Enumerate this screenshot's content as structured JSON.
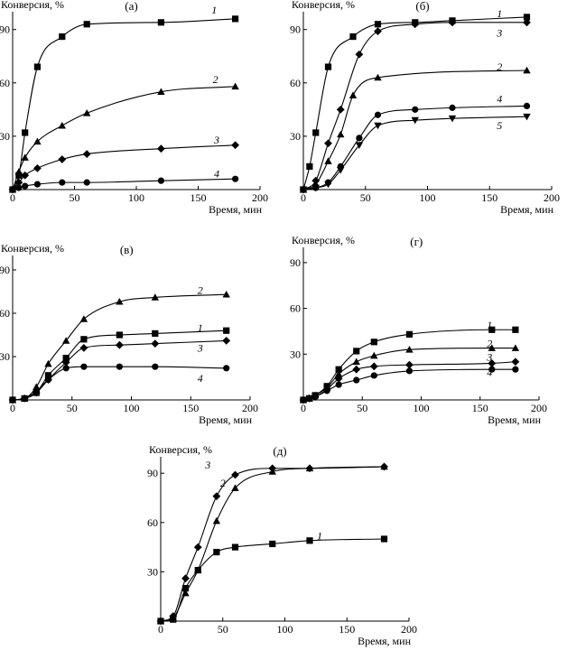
{
  "chart_data": [
    {
      "type": "line",
      "panel_label": "(а)",
      "ylabel": "Конверсия, %",
      "xlabel": "Время, мин",
      "xlim": [
        0,
        200
      ],
      "ylim": [
        0,
        100
      ],
      "xticks": [
        0,
        50,
        100,
        150,
        200
      ],
      "yticks": [
        30,
        60,
        90
      ],
      "series": [
        {
          "name": "1",
          "marker": "square",
          "x": [
            0,
            5,
            10,
            20,
            40,
            60,
            120,
            180
          ],
          "y": [
            0,
            8,
            32,
            69,
            86,
            93,
            94,
            96
          ]
        },
        {
          "name": "2",
          "marker": "triangle",
          "x": [
            0,
            5,
            10,
            20,
            40,
            60,
            120,
            180
          ],
          "y": [
            0,
            10,
            18,
            27,
            36,
            43,
            55,
            58
          ]
        },
        {
          "name": "3",
          "marker": "diamond",
          "x": [
            0,
            5,
            10,
            20,
            40,
            60,
            120,
            180
          ],
          "y": [
            0,
            4,
            8,
            12,
            17,
            20,
            23,
            25
          ]
        },
        {
          "name": "4",
          "marker": "circle",
          "x": [
            0,
            5,
            10,
            20,
            40,
            60,
            120,
            180
          ],
          "y": [
            0,
            1,
            2,
            3,
            4,
            4,
            5,
            6
          ]
        }
      ]
    },
    {
      "type": "line",
      "panel_label": "(б)",
      "ylabel": "Конверсия, %",
      "xlabel": "Время, мин",
      "xlim": [
        0,
        200
      ],
      "ylim": [
        0,
        100
      ],
      "xticks": [
        0,
        50,
        100,
        150,
        200
      ],
      "yticks": [
        30,
        60,
        90
      ],
      "series": [
        {
          "name": "1",
          "marker": "square",
          "x": [
            0,
            5,
            10,
            20,
            40,
            60,
            90,
            120,
            180
          ],
          "y": [
            0,
            13,
            32,
            69,
            86,
            93,
            94,
            95,
            97
          ]
        },
        {
          "name": "3",
          "marker": "diamond",
          "x": [
            0,
            10,
            20,
            30,
            45,
            60,
            90,
            120,
            180
          ],
          "y": [
            0,
            5,
            26,
            45,
            76,
            89,
            93,
            94,
            94
          ]
        },
        {
          "name": "2",
          "marker": "triangle",
          "x": [
            0,
            10,
            20,
            30,
            40,
            60,
            180
          ],
          "y": [
            0,
            3,
            16,
            31,
            53,
            63,
            67
          ]
        },
        {
          "name": "4",
          "marker": "circle",
          "x": [
            0,
            10,
            20,
            30,
            45,
            60,
            90,
            120,
            180
          ],
          "y": [
            0,
            1,
            4,
            13,
            29,
            42,
            45,
            46,
            47
          ]
        },
        {
          "name": "5",
          "marker": "triangle-down",
          "x": [
            0,
            10,
            20,
            30,
            45,
            60,
            90,
            120,
            180
          ],
          "y": [
            0,
            1,
            3,
            11,
            25,
            36,
            39,
            40,
            41
          ]
        }
      ]
    },
    {
      "type": "line",
      "panel_label": "(в)",
      "ylabel": "Конверсия, %",
      "xlabel": "Время, мин",
      "xlim": [
        0,
        200
      ],
      "ylim": [
        0,
        100
      ],
      "xticks": [
        0,
        50,
        100,
        150,
        200
      ],
      "yticks": [
        30,
        60,
        90
      ],
      "series": [
        {
          "name": "2",
          "marker": "triangle",
          "x": [
            0,
            10,
            20,
            30,
            45,
            60,
            90,
            120,
            180
          ],
          "y": [
            0,
            1,
            9,
            25,
            41,
            56,
            68,
            71,
            73
          ]
        },
        {
          "name": "1",
          "marker": "square",
          "x": [
            0,
            10,
            20,
            30,
            45,
            60,
            90,
            120,
            180
          ],
          "y": [
            0,
            1,
            5,
            17,
            29,
            42,
            45,
            46,
            48
          ]
        },
        {
          "name": "3",
          "marker": "diamond",
          "x": [
            0,
            10,
            20,
            30,
            45,
            60,
            90,
            120,
            180
          ],
          "y": [
            0,
            1,
            5,
            14,
            26,
            36,
            38,
            39,
            41
          ]
        },
        {
          "name": "4",
          "marker": "circle",
          "x": [
            0,
            10,
            20,
            30,
            45,
            60,
            90,
            120,
            180
          ],
          "y": [
            0,
            1,
            6,
            14,
            22,
            23,
            23,
            23,
            22
          ]
        }
      ]
    },
    {
      "type": "line",
      "panel_label": "(г)",
      "ylabel": "Конверсия, %",
      "xlabel": "Время, мин",
      "xlim": [
        0,
        200
      ],
      "ylim": [
        0,
        100
      ],
      "xticks": [
        0,
        50,
        100,
        150,
        200
      ],
      "yticks": [
        30,
        60,
        90
      ],
      "series": [
        {
          "name": "1",
          "marker": "square",
          "x": [
            0,
            5,
            10,
            20,
            30,
            45,
            60,
            90,
            160,
            180
          ],
          "y": [
            0,
            1,
            3,
            9,
            20,
            32,
            38,
            43,
            46,
            46
          ]
        },
        {
          "name": "2",
          "marker": "triangle",
          "x": [
            0,
            5,
            10,
            20,
            30,
            45,
            60,
            90,
            160,
            180
          ],
          "y": [
            0,
            1,
            3,
            8,
            17,
            25,
            29,
            33,
            34,
            34
          ]
        },
        {
          "name": "3",
          "marker": "diamond",
          "x": [
            0,
            5,
            10,
            20,
            30,
            45,
            60,
            90,
            160,
            180
          ],
          "y": [
            0,
            1,
            2,
            7,
            14,
            20,
            22,
            23,
            24,
            25
          ]
        },
        {
          "name": "4",
          "marker": "circle",
          "x": [
            0,
            5,
            10,
            20,
            30,
            45,
            60,
            90,
            160,
            180
          ],
          "y": [
            0,
            1,
            2,
            6,
            10,
            13,
            16,
            19,
            20,
            20
          ]
        }
      ]
    },
    {
      "type": "line",
      "panel_label": "(д)",
      "ylabel": "Конверсия, %",
      "xlabel": "Время, мин",
      "xlim": [
        0,
        200
      ],
      "ylim": [
        0,
        100
      ],
      "xticks": [
        0,
        50,
        100,
        150,
        200
      ],
      "yticks": [
        30,
        60,
        90
      ],
      "series": [
        {
          "name": "3",
          "marker": "diamond",
          "x": [
            0,
            10,
            20,
            30,
            45,
            60,
            90,
            120,
            180
          ],
          "y": [
            0,
            3,
            26,
            45,
            76,
            89,
            93,
            93,
            94
          ]
        },
        {
          "name": "2",
          "marker": "triangle",
          "x": [
            0,
            10,
            20,
            30,
            45,
            60,
            90,
            120,
            180
          ],
          "y": [
            0,
            2,
            17,
            31,
            61,
            81,
            91,
            93,
            94
          ]
        },
        {
          "name": "1",
          "marker": "square",
          "x": [
            0,
            10,
            20,
            30,
            45,
            60,
            90,
            120,
            180
          ],
          "y": [
            0,
            1,
            20,
            31,
            42,
            45,
            47,
            49,
            50
          ]
        }
      ]
    }
  ]
}
